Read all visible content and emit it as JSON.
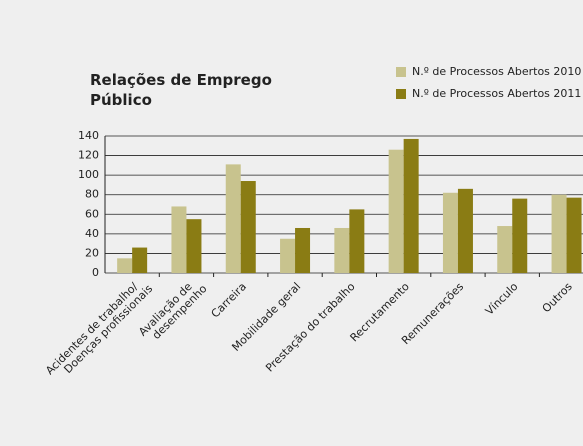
{
  "chart_data": {
    "type": "bar",
    "title": "Relações de Emprego\nPúblico",
    "categories": [
      "Acidentes de trabalho/\nDoenças profissionais",
      "Avaliação de\ndesempenho",
      "Carreira",
      "Mobilidade geral",
      "Prestação do trabalho",
      "Recrutamento",
      "Remunerações",
      "Vínculo",
      "Outros"
    ],
    "series": [
      {
        "name": "N.º de Processos Abertos 2010",
        "color": "#c8c38e",
        "values": [
          15,
          68,
          111,
          35,
          46,
          126,
          82,
          48,
          80
        ]
      },
      {
        "name": "N.º de Processos Abertos 2011",
        "color": "#8a7c14",
        "values": [
          26,
          55,
          94,
          46,
          65,
          137,
          86,
          76,
          77
        ]
      }
    ],
    "ylim": [
      0,
      140
    ],
    "yticks": [
      0,
      20,
      40,
      60,
      80,
      100,
      120,
      140
    ],
    "grid": true
  }
}
